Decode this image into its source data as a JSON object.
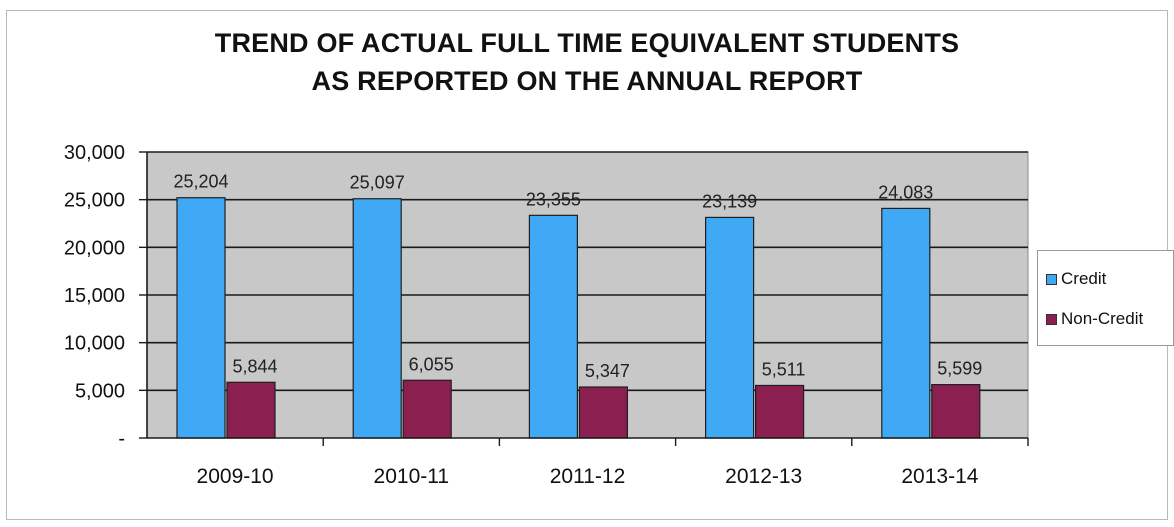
{
  "chart_data": {
    "type": "bar",
    "title_lines": [
      "TREND OF ACTUAL FULL TIME EQUIVALENT STUDENTS",
      "AS REPORTED ON THE ANNUAL REPORT"
    ],
    "categories": [
      "2009-10",
      "2010-11",
      "2011-12",
      "2012-13",
      "2013-14"
    ],
    "series": [
      {
        "name": "Credit",
        "color": "#3fa9f5",
        "values": [
          25204,
          25097,
          23355,
          23139,
          24083
        ],
        "labels": [
          "25,204",
          "25,097",
          "23,355",
          "23,139",
          "24,083"
        ]
      },
      {
        "name": "Non-Credit",
        "color": "#8b1f4f",
        "values": [
          5844,
          6055,
          5347,
          5511,
          5599
        ],
        "labels": [
          "5,844",
          "6,055",
          "5,347",
          "5,511",
          "5,599"
        ]
      }
    ],
    "yticks": [
      {
        "value": 0,
        "label": "-"
      },
      {
        "value": 5000,
        "label": "5,000"
      },
      {
        "value": 10000,
        "label": "10,000"
      },
      {
        "value": 15000,
        "label": "15,000"
      },
      {
        "value": 20000,
        "label": "20,000"
      },
      {
        "value": 25000,
        "label": "25,000"
      },
      {
        "value": 30000,
        "label": "30,000"
      }
    ],
    "ylim": [
      0,
      30000
    ],
    "grid": true,
    "plot_background": "#c8c8c8",
    "legend_position": "right"
  }
}
